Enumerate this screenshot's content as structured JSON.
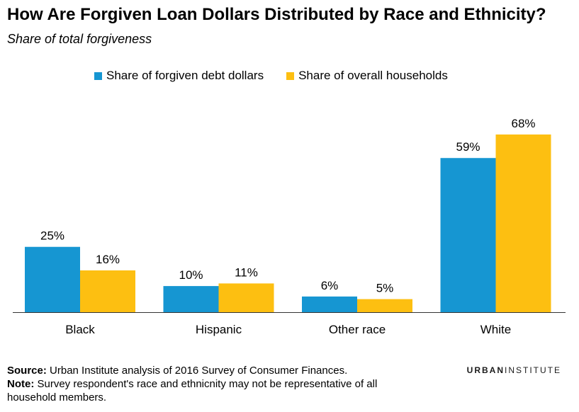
{
  "title": "How Are Forgiven Loan Dollars Distributed by Race and Ethnicity?",
  "subtitle": "Share of total forgiveness",
  "colors": {
    "series_1": "#1696d2",
    "series_2": "#fdbf11"
  },
  "chart_data": {
    "type": "bar",
    "title": "How Are Forgiven Loan Dollars Distributed by Race and Ethnicity?",
    "subtitle": "Share of total forgiveness",
    "categories": [
      "Black",
      "Hispanic",
      "Other race",
      "White"
    ],
    "series": [
      {
        "name": "Share of forgiven debt dollars",
        "values": [
          25,
          10,
          6,
          59
        ],
        "labels": [
          "25%",
          "10%",
          "6%",
          "59%"
        ]
      },
      {
        "name": "Share of overall households",
        "values": [
          16,
          11,
          5,
          68
        ],
        "labels": [
          "16%",
          "11%",
          "5%",
          "68%"
        ]
      }
    ],
    "ylim": [
      0,
      68
    ],
    "grid": false,
    "legend_position": "top"
  },
  "footer": {
    "source_label": "Source:",
    "source_text": "Urban Institute analysis of 2016 Survey of Consumer Finances.",
    "note_label": "Note:",
    "note_text": "Survey respondent's race and ethnicnity  may not be representative of all household members."
  },
  "brand": {
    "part1": "URBAN",
    "part2": "INSTITUTE"
  }
}
